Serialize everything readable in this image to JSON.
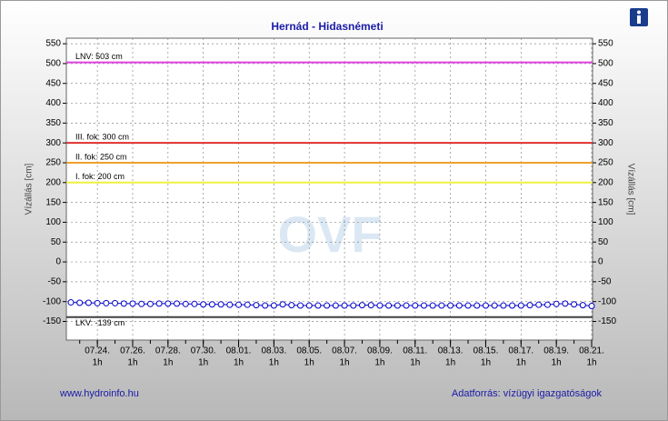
{
  "chart_data": {
    "type": "line",
    "title": "Hernád - Hidasnémeti",
    "ylabel": "Vízállás [cm]",
    "categories": [
      null,
      null,
      null,
      "07.24.",
      null,
      null,
      null,
      "07.26.",
      null,
      null,
      null,
      "07.28.",
      null,
      null,
      null,
      "07.30.",
      null,
      null,
      null,
      "08.01.",
      null,
      null,
      null,
      "08.03.",
      null,
      null,
      null,
      "08.05.",
      null,
      null,
      null,
      "08.07.",
      null,
      null,
      null,
      "08.09.",
      null,
      null,
      null,
      "08.11.",
      null,
      null,
      null,
      "08.13.",
      null,
      null,
      null,
      "08.15.",
      null,
      null,
      null,
      "08.17.",
      null,
      null,
      null,
      "08.19.",
      null,
      null,
      null,
      "08.21."
    ],
    "xtick_sublabel": "1h",
    "series": [
      {
        "name": "Vízállás",
        "color": "#0000cc",
        "values": [
          -102,
          -103,
          -103,
          -104,
          -104,
          -104,
          -105,
          -105,
          -106,
          -106,
          -105,
          -105,
          -105,
          -106,
          -106,
          -107,
          -107,
          -107,
          -108,
          -108,
          -108,
          -109,
          -110,
          -110,
          -107,
          -109,
          -110,
          -110,
          -110,
          -110,
          -110,
          -110,
          -110,
          -109,
          -109,
          -110,
          -110,
          -110,
          -110,
          -110,
          -110,
          -110,
          -110,
          -110,
          -110,
          -110,
          -110,
          -110,
          -110,
          -110,
          -110,
          -110,
          -109,
          -108,
          -108,
          -106,
          -105,
          -107,
          -109,
          -111
        ]
      }
    ],
    "ylim": [
      -197,
      564
    ],
    "yticks": [
      -150,
      -100,
      -50,
      0,
      50,
      100,
      150,
      200,
      250,
      300,
      350,
      400,
      450,
      500,
      550
    ],
    "grid": true,
    "ref_lines": [
      {
        "label": "LNV: 503 cm",
        "value": 503,
        "color": "#e040e0"
      },
      {
        "label": "III. fok: 300 cm",
        "value": 300,
        "color": "#e03030"
      },
      {
        "label": "II. fok: 250 cm",
        "value": 250,
        "color": "#f0a030"
      },
      {
        "label": "I. fok: 200 cm",
        "value": 200,
        "color": "#f0f040"
      },
      {
        "label": "LKV: -139 cm",
        "value": -139,
        "color": "#404040"
      }
    ],
    "watermark": "OVF",
    "footer_left": "www.hydroinfo.hu",
    "footer_right": "Adatforrás: vízügyi igazgatóságok"
  }
}
